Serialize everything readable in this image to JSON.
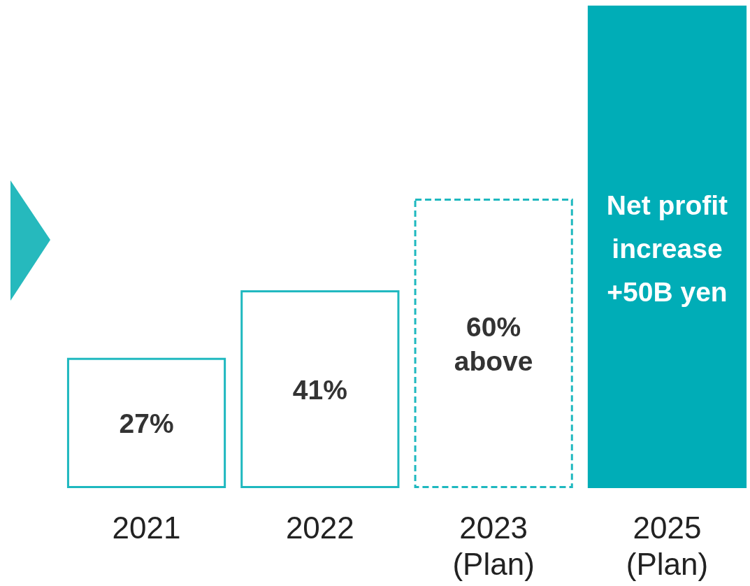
{
  "chart_data": {
    "type": "bar",
    "categories": [
      "2021",
      "2022",
      "2023\n(Plan)",
      "2025\n(Plan)"
    ],
    "series": [
      {
        "color": "#1eb8bf",
        "line_style": "solid",
        "values": [
          27,
          41,
          null,
          null
        ],
        "value_labels": [
          "27%",
          "41%",
          null,
          null
        ]
      },
      {
        "color": "#1eb8bf",
        "line_style": "dashed",
        "values": [
          null,
          null,
          60,
          null
        ],
        "value_labels": [
          null,
          null,
          "60%\nabove",
          null
        ]
      },
      {
        "color": "#00adb7",
        "values": [
          null,
          null,
          null,
          100
        ]
      }
    ],
    "annotations": [
      "Net profit\nincrease\n+50B yen"
    ]
  }
}
